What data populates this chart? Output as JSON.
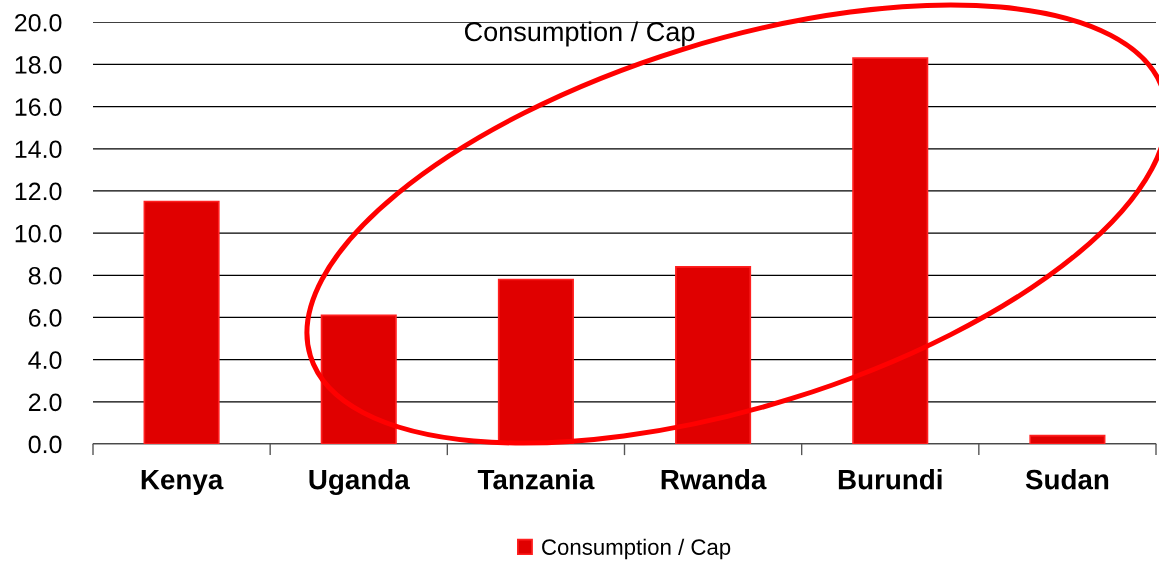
{
  "chart_data": {
    "type": "bar",
    "title": "Consumption / Cap",
    "categories": [
      "Kenya",
      "Uganda",
      "Tanzania",
      "Rwanda",
      "Burundi",
      "Sudan"
    ],
    "series": [
      {
        "name": "Consumption / Cap",
        "color": "#e00000",
        "values": [
          11.5,
          6.1,
          7.8,
          8.4,
          18.3,
          0.4
        ]
      }
    ],
    "ylim": [
      0,
      20
    ],
    "yticks": [
      {
        "value": 0,
        "label": "0.0"
      },
      {
        "value": 2,
        "label": "2.0"
      },
      {
        "value": 4,
        "label": "4.0"
      },
      {
        "value": 6,
        "label": "6.0"
      },
      {
        "value": 8,
        "label": "8.0"
      },
      {
        "value": 10,
        "label": "10.0"
      },
      {
        "value": 12,
        "label": "12.0"
      },
      {
        "value": 14,
        "label": "14.0"
      },
      {
        "value": 16,
        "label": "16.0"
      },
      {
        "value": 18,
        "label": "18.0"
      },
      {
        "value": 20,
        "label": "20.0"
      }
    ],
    "grid": "y",
    "legend": "bottom"
  }
}
